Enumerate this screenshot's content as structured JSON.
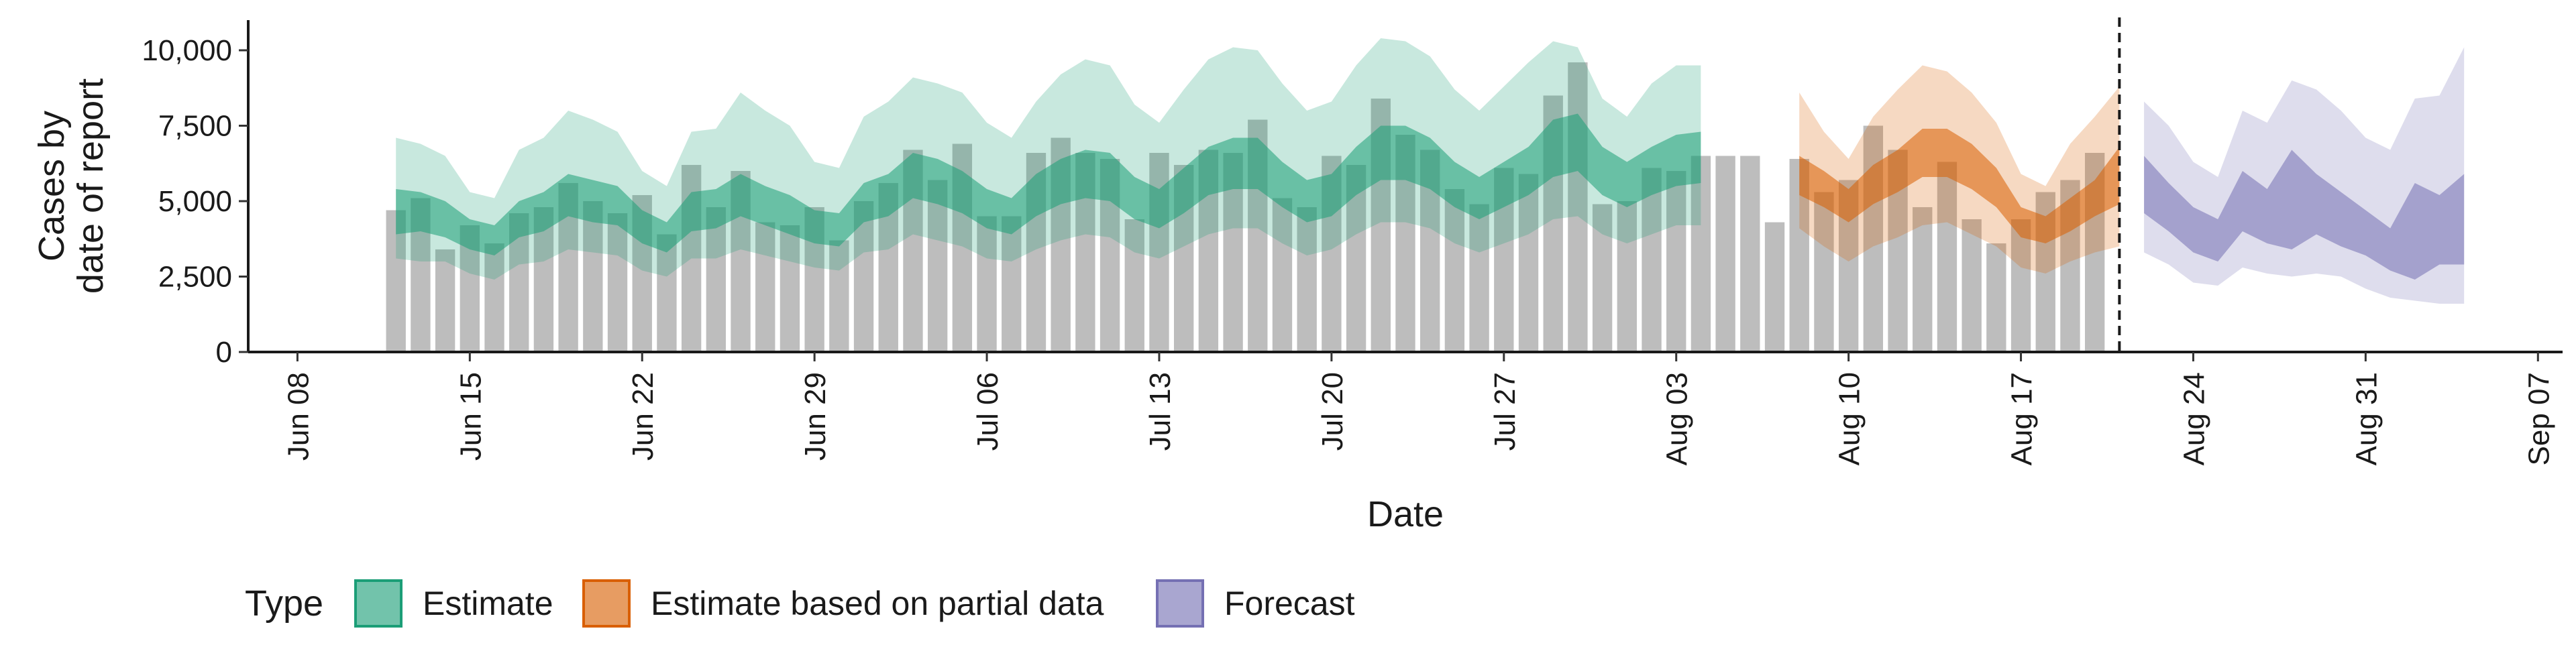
{
  "chart_data": {
    "type": "area",
    "xlabel": "Date",
    "ylabel_lines": [
      "Cases by",
      "date of report"
    ],
    "ylim": [
      0,
      11000
    ],
    "xlim": [
      "2020-06-06",
      "2020-09-08"
    ],
    "y_ticks": [
      0,
      2500,
      5000,
      7500,
      10000
    ],
    "y_tick_labels": [
      "0",
      "2,500",
      "5,000",
      "7,500",
      "10,000"
    ],
    "x_ticks": [
      "2020-06-08",
      "2020-06-15",
      "2020-06-22",
      "2020-06-29",
      "2020-07-06",
      "2020-07-13",
      "2020-07-20",
      "2020-07-27",
      "2020-08-03",
      "2020-08-10",
      "2020-08-17",
      "2020-08-24",
      "2020-08-31",
      "2020-09-07"
    ],
    "x_tick_labels": [
      "Jun 08",
      "Jun 15",
      "Jun 22",
      "Jun 29",
      "Jul 06",
      "Jul 13",
      "Jul 20",
      "Jul 27",
      "Aug 03",
      "Aug 10",
      "Aug 17",
      "Aug 24",
      "Aug 31",
      "Sep 07"
    ],
    "vline_date": "2020-08-21",
    "colors": {
      "bars": "#bdbdbd",
      "Estimate": "#1b9e77",
      "Estimate based on partial data": "#d95f02",
      "Forecast": "#7570b3"
    },
    "bars": {
      "start": "2020-06-12",
      "values": [
        4700,
        5100,
        3400,
        4200,
        3600,
        4600,
        4800,
        5600,
        5000,
        4600,
        5200,
        3900,
        6200,
        4800,
        6000,
        4300,
        4200,
        4800,
        3700,
        5000,
        5600,
        6700,
        5700,
        6900,
        4500,
        4500,
        6600,
        7100,
        6600,
        6400,
        4400,
        6600,
        6200,
        6700,
        6600,
        7700,
        5100,
        4800,
        6500,
        6200,
        8400,
        7200,
        6700,
        5400,
        4900,
        6100,
        5900,
        8500,
        9600,
        4900,
        5000,
        6100,
        6000,
        6500,
        6500,
        6500,
        4300,
        6400,
        5300,
        5700,
        7500,
        6700,
        4800,
        6300,
        4400,
        3600,
        4400,
        5300,
        5700,
        6600
      ]
    },
    "series": [
      {
        "name": "Estimate",
        "start": "2020-06-12",
        "lower90": [
          3100,
          3000,
          3000,
          2600,
          2400,
          2900,
          3000,
          3400,
          3300,
          3200,
          2700,
          2500,
          3100,
          3100,
          3400,
          3200,
          3000,
          2800,
          2700,
          3300,
          3400,
          3900,
          3700,
          3500,
          3100,
          3000,
          3400,
          3700,
          3900,
          3800,
          3300,
          3100,
          3500,
          3900,
          4100,
          4100,
          3600,
          3200,
          3400,
          3900,
          4300,
          4300,
          4100,
          3600,
          3300,
          3600,
          3900,
          4400,
          4500,
          3900,
          3600,
          3900,
          4200,
          4200
        ],
        "lower50": [
          3900,
          4000,
          3800,
          3400,
          3200,
          3800,
          4000,
          4500,
          4300,
          4200,
          3600,
          3300,
          4000,
          4100,
          4500,
          4200,
          3900,
          3600,
          3500,
          4300,
          4500,
          5100,
          4900,
          4600,
          4100,
          3900,
          4500,
          4900,
          5100,
          5000,
          4400,
          4100,
          4600,
          5200,
          5400,
          5400,
          4800,
          4300,
          4500,
          5200,
          5700,
          5700,
          5400,
          4800,
          4400,
          4800,
          5200,
          5800,
          6000,
          5200,
          4800,
          5200,
          5500,
          5600
        ],
        "upper50": [
          5400,
          5300,
          5000,
          4400,
          4200,
          5000,
          5300,
          5900,
          5700,
          5500,
          4700,
          4300,
          5300,
          5400,
          5900,
          5500,
          5200,
          4700,
          4600,
          5600,
          5900,
          6600,
          6400,
          6000,
          5400,
          5100,
          5900,
          6400,
          6700,
          6600,
          5800,
          5400,
          6100,
          6800,
          7100,
          7100,
          6300,
          5700,
          5900,
          6800,
          7500,
          7500,
          7100,
          6300,
          5800,
          6300,
          6800,
          7700,
          7900,
          6800,
          6300,
          6800,
          7200,
          7300
        ],
        "upper90": [
          7100,
          6900,
          6500,
          5300,
          5100,
          6700,
          7100,
          8000,
          7700,
          7300,
          6000,
          5500,
          7300,
          7400,
          8600,
          8000,
          7500,
          6300,
          6100,
          7800,
          8300,
          9100,
          8900,
          8600,
          7600,
          7100,
          8300,
          9200,
          9700,
          9500,
          8200,
          7600,
          8700,
          9700,
          10100,
          10000,
          8900,
          8000,
          8300,
          9500,
          10400,
          10300,
          9800,
          8700,
          8000,
          8800,
          9600,
          10300,
          10100,
          8400,
          7800,
          8900,
          9500,
          9500
        ]
      },
      {
        "name": "Estimate based on partial data",
        "start": "2020-08-08",
        "lower90": [
          4100,
          3500,
          3000,
          3500,
          3800,
          4200,
          4300,
          3900,
          3500,
          2800,
          2600,
          3000,
          3300,
          3500
        ],
        "lower50": [
          5200,
          4800,
          4300,
          4900,
          5300,
          5800,
          5800,
          5400,
          4800,
          3800,
          3600,
          4000,
          4500,
          4900
        ],
        "upper50": [
          6500,
          6000,
          5400,
          6200,
          6700,
          7400,
          7400,
          6900,
          6100,
          4800,
          4500,
          5100,
          5700,
          6800
        ],
        "upper90": [
          8600,
          7300,
          6400,
          7800,
          8700,
          9500,
          9300,
          8600,
          7600,
          5900,
          5500,
          6900,
          7800,
          8800
        ]
      },
      {
        "name": "Forecast",
        "start": "2020-08-22",
        "lower90": [
          3300,
          2900,
          2300,
          2200,
          2800,
          2600,
          2500,
          2600,
          2500,
          2100,
          1800,
          1700,
          1600,
          1600
        ],
        "lower50": [
          4600,
          4000,
          3300,
          3000,
          4000,
          3600,
          3400,
          3900,
          3500,
          3200,
          2700,
          2400,
          2900,
          2900
        ],
        "upper50": [
          6500,
          5600,
          4800,
          4400,
          6000,
          5400,
          6700,
          5900,
          5300,
          4700,
          4100,
          5600,
          5200,
          5900
        ],
        "upper90": [
          8300,
          7500,
          6300,
          5800,
          8000,
          7600,
          9000,
          8700,
          8000,
          7100,
          6700,
          8400,
          8500,
          10100
        ]
      }
    ],
    "legend": {
      "title": "Type",
      "position": "bottom",
      "items": [
        "Estimate",
        "Estimate based on partial data",
        "Forecast"
      ]
    }
  }
}
